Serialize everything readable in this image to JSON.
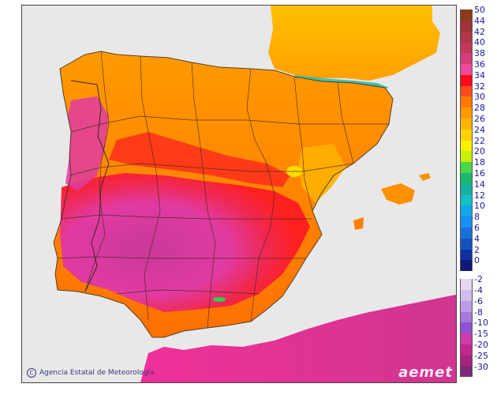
{
  "map": {
    "credit_text": "Agencia Estatal de Meteorología",
    "logo_text": "aemet",
    "colors": {
      "sea": "#e8e8e8",
      "border": "#3a2a1a",
      "hot_magenta": "#e13ba2",
      "deep_magenta": "#c0338c",
      "red": "#ff1e1e",
      "orange": "#ff8c00",
      "light_orange": "#ffb000",
      "yellow": "#ffe600",
      "green": "#33cc55",
      "teal": "#1ab0a8"
    }
  },
  "legend": {
    "warm": [
      {
        "label": "50",
        "color": "#8b3a1a"
      },
      {
        "label": "44",
        "color": "#9c3438"
      },
      {
        "label": "42",
        "color": "#b03648"
      },
      {
        "label": "40",
        "color": "#c0395a"
      },
      {
        "label": "38",
        "color": "#d43e7a"
      },
      {
        "label": "36",
        "color": "#f04a9a"
      },
      {
        "label": "34",
        "color": "#ff0a1e"
      },
      {
        "label": "32",
        "color": "#ff4a1a"
      },
      {
        "label": "30",
        "color": "#ff7a00"
      },
      {
        "label": "28",
        "color": "#ff9a00"
      },
      {
        "label": "26",
        "color": "#ffb400"
      },
      {
        "label": "24",
        "color": "#ffd200"
      },
      {
        "label": "22",
        "color": "#fff000"
      },
      {
        "label": "20",
        "color": "#c8f000"
      },
      {
        "label": "18",
        "color": "#4ad84a"
      },
      {
        "label": "16",
        "color": "#1ab870"
      },
      {
        "label": "14",
        "color": "#18b0a0"
      },
      {
        "label": "12",
        "color": "#14c0c8"
      },
      {
        "label": "10",
        "color": "#10a8e8"
      },
      {
        "label": "8",
        "color": "#1890f0"
      },
      {
        "label": "6",
        "color": "#1870d8"
      },
      {
        "label": "4",
        "color": "#1450c0"
      },
      {
        "label": "2",
        "color": "#1030a0"
      },
      {
        "label": "0",
        "color": "#101878"
      }
    ],
    "cold": [
      {
        "label": "-2",
        "color": "#e4d8f4"
      },
      {
        "label": "-4",
        "color": "#d2bcee"
      },
      {
        "label": "-6",
        "color": "#bc9ce6"
      },
      {
        "label": "-8",
        "color": "#a678dc"
      },
      {
        "label": "-10",
        "color": "#8e52d2"
      },
      {
        "label": "-15",
        "color": "#d03ca8"
      },
      {
        "label": "-20",
        "color": "#c02890"
      },
      {
        "label": "-25",
        "color": "#a82280"
      },
      {
        "label": "-30",
        "color": "#7a2a78"
      }
    ]
  }
}
